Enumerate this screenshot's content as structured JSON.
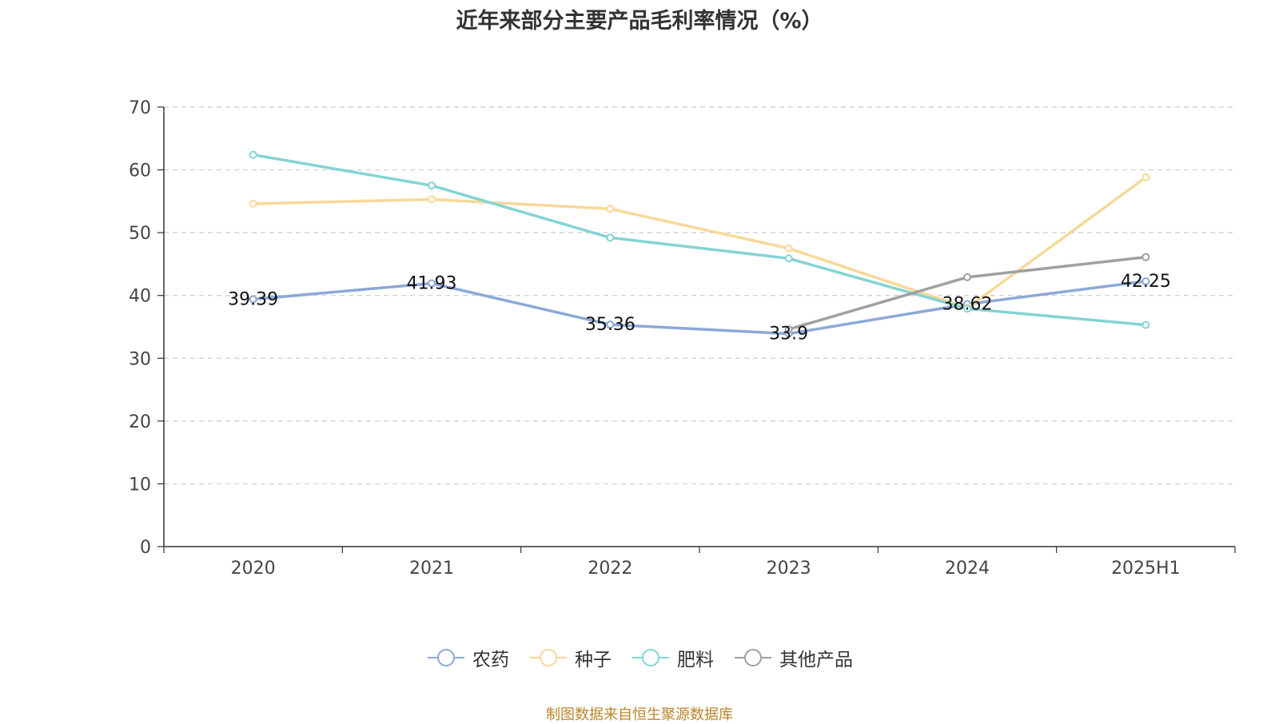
{
  "chart_data": {
    "type": "line",
    "title": "近年来部分主要产品毛利率情况（%）",
    "categories": [
      "2020",
      "2021",
      "2022",
      "2023",
      "2024",
      "2025H1"
    ],
    "ylim": [
      0,
      70
    ],
    "yticks": [
      0,
      10,
      20,
      30,
      40,
      50,
      60,
      70
    ],
    "grid": true,
    "legend_position": "bottom",
    "series": [
      {
        "name": "农药",
        "color": "#8ca8d8",
        "values": [
          39.39,
          41.93,
          35.36,
          33.9,
          38.62,
          42.25
        ],
        "labels_shown": true
      },
      {
        "name": "种子",
        "color": "#f7d898",
        "values": [
          54.6,
          55.3,
          53.8,
          47.5,
          38.0,
          58.8
        ],
        "labels_shown": false
      },
      {
        "name": "肥料",
        "color": "#84d4d2",
        "values": [
          62.4,
          57.5,
          49.2,
          45.9,
          37.9,
          35.3
        ],
        "labels_shown": false
      },
      {
        "name": "其他产品",
        "color": "#a0a0a0",
        "values": [
          null,
          null,
          null,
          34.6,
          42.9,
          46.1
        ],
        "labels_shown": false
      }
    ]
  },
  "footer": {
    "source": "制图数据来自恒生聚源数据库"
  }
}
